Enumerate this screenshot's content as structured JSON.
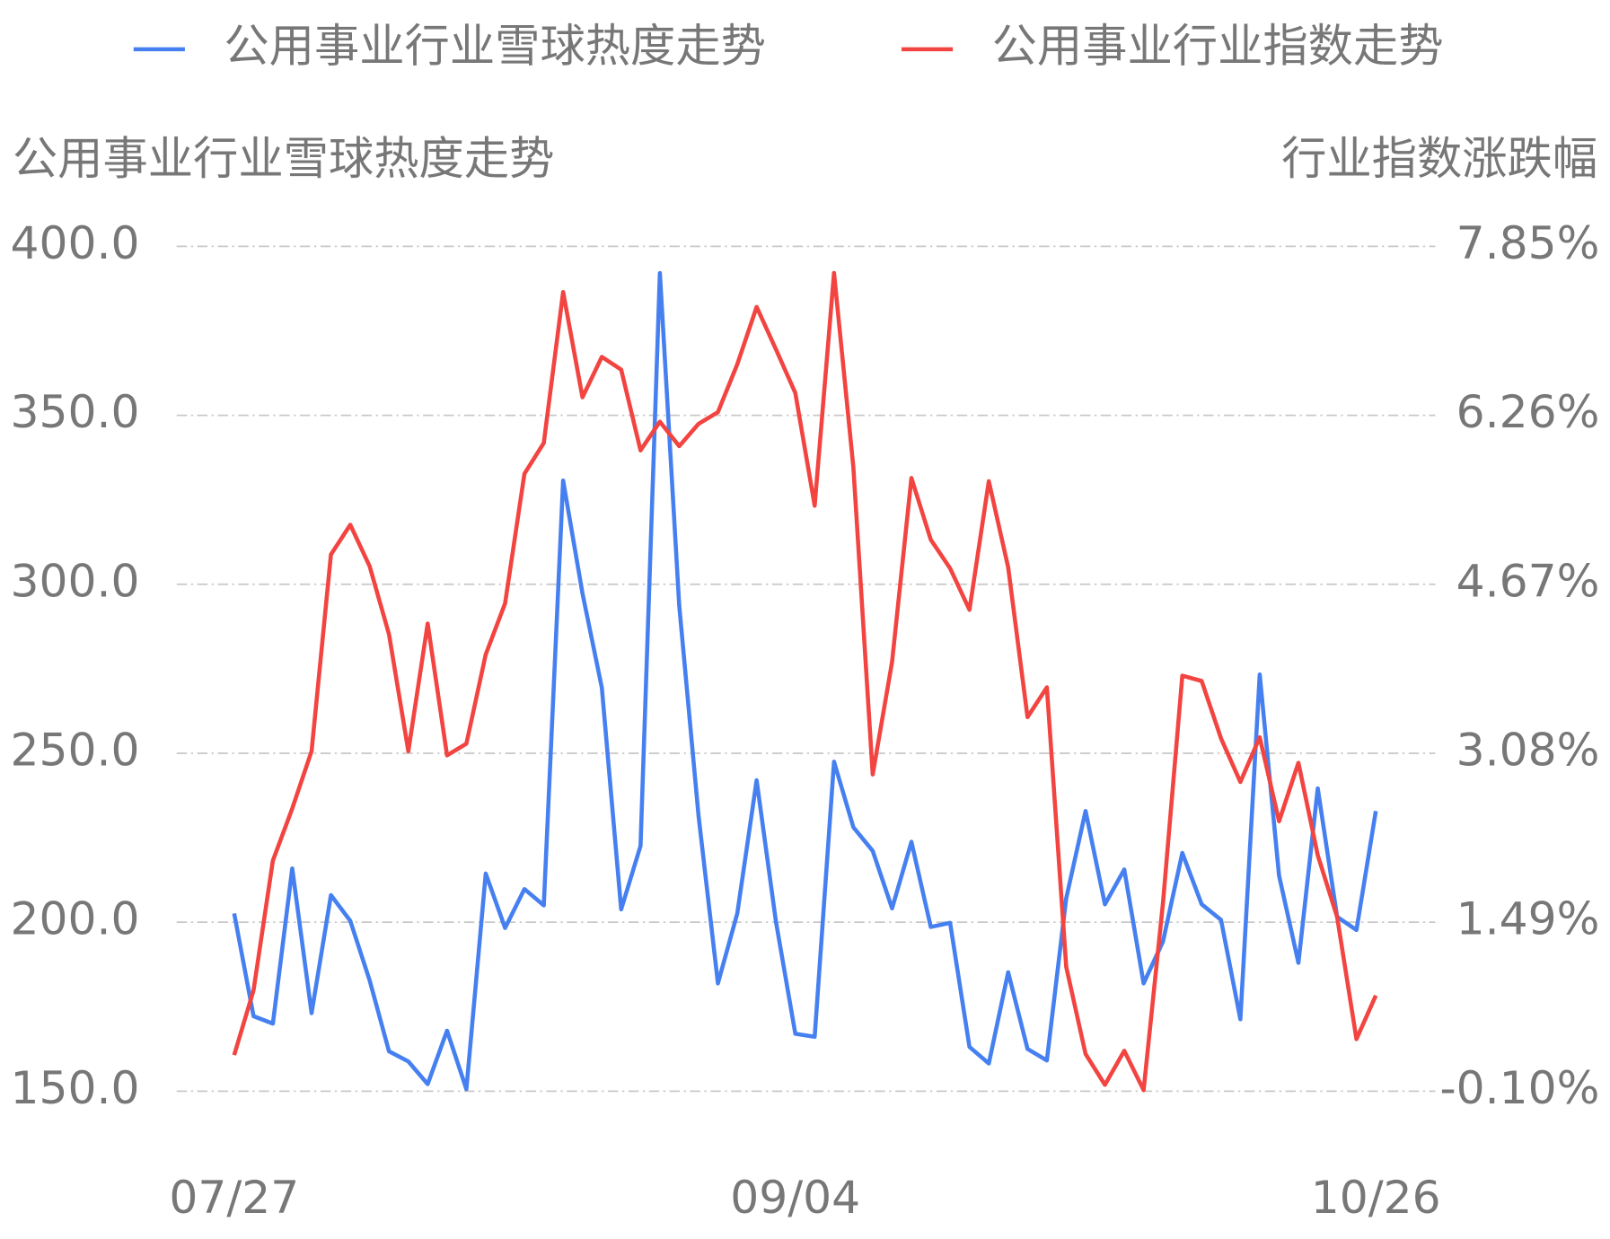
{
  "chart_data": {
    "type": "line",
    "y_label": "公用事业行业雪球热度走势",
    "y2_label": "行业指数涨跌幅",
    "categories": [
      "07/27",
      null,
      null,
      null,
      null,
      null,
      null,
      null,
      null,
      null,
      null,
      null,
      null,
      null,
      null,
      null,
      null,
      null,
      null,
      null,
      null,
      null,
      null,
      null,
      null,
      null,
      null,
      null,
      null,
      "09/04",
      null,
      null,
      null,
      null,
      null,
      null,
      null,
      null,
      null,
      null,
      null,
      null,
      null,
      null,
      null,
      null,
      null,
      null,
      null,
      null,
      null,
      null,
      null,
      null,
      null,
      null,
      null,
      null,
      null,
      "10/26"
    ],
    "series": [
      {
        "name": "公用事业行业雪球热度走势",
        "color": "#4680f0",
        "values": [
          202.6,
          172.2,
          170.0,
          215.9,
          173.1,
          208.0,
          200.4,
          182.8,
          161.8,
          158.8,
          152.1,
          167.9,
          150.6,
          214.4,
          198.3,
          209.8,
          205.0,
          330.7,
          297.3,
          269.4,
          203.8,
          222.6,
          392.1,
          293.7,
          231.4,
          181.9,
          202.6,
          242.0,
          200.1,
          167.0,
          166.1,
          247.5,
          228.1,
          221.1,
          204.1,
          223.8,
          198.6,
          199.8,
          163.1,
          158.2,
          185.2,
          162.5,
          159.1,
          207.1,
          232.9,
          205.3,
          215.6,
          181.9,
          194.3,
          220.5,
          205.3,
          200.7,
          171.3,
          273.3,
          213.8,
          188.0,
          239.6,
          201.6,
          197.7,
          232.9
        ]
      },
      {
        "name": "公用事业行业指数走势",
        "color": "#f24440",
        "axis": "y2",
        "values": [
          0.24,
          0.85,
          2.07,
          2.56,
          3.1,
          4.95,
          5.23,
          4.84,
          4.2,
          3.1,
          4.3,
          3.06,
          3.17,
          4.01,
          4.49,
          5.71,
          6.0,
          7.42,
          6.43,
          6.81,
          6.69,
          5.93,
          6.2,
          5.97,
          6.18,
          6.29,
          6.74,
          7.28,
          6.88,
          6.47,
          5.41,
          7.6,
          5.77,
          2.88,
          3.94,
          5.67,
          5.09,
          4.82,
          4.43,
          5.64,
          4.83,
          3.42,
          3.7,
          1.07,
          0.25,
          -0.04,
          0.28,
          -0.09,
          1.67,
          3.81,
          3.76,
          3.22,
          2.81,
          3.23,
          2.44,
          2.99,
          2.12,
          1.54,
          0.39,
          0.8
        ]
      }
    ],
    "ylim": [
      150,
      400
    ],
    "yticks": [
      {
        "value": 150,
        "label": "150.0"
      },
      {
        "value": 200,
        "label": "200.0"
      },
      {
        "value": 250,
        "label": "250.0"
      },
      {
        "value": 300,
        "label": "300.0"
      },
      {
        "value": 350,
        "label": "350.0"
      },
      {
        "value": 400,
        "label": "400.0"
      }
    ],
    "y2lim": [
      -0.1,
      7.85
    ],
    "y2ticks": [
      {
        "value": -0.1,
        "label": "-0.10%"
      },
      {
        "value": 1.49,
        "label": "1.49%"
      },
      {
        "value": 3.08,
        "label": "3.08%"
      },
      {
        "value": 4.67,
        "label": "4.67%"
      },
      {
        "value": 6.26,
        "label": "6.26%"
      },
      {
        "value": 7.85,
        "label": "7.85%"
      }
    ],
    "grid": true,
    "legend": "top"
  }
}
